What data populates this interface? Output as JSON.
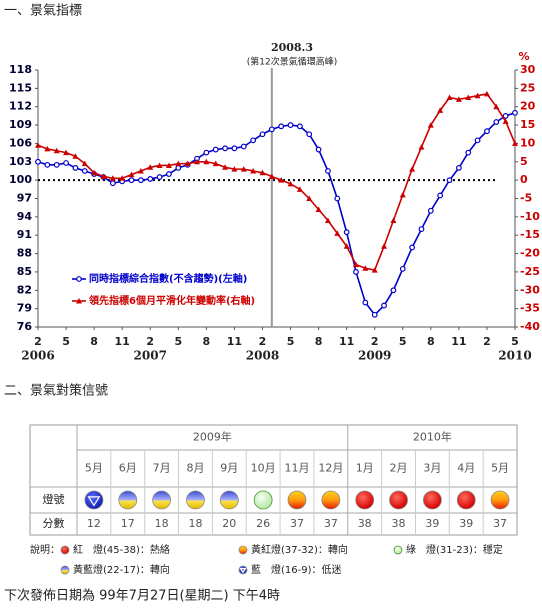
{
  "heading": "一、景氣指標",
  "chart_data": {
    "type": "line",
    "annotation": {
      "label": "2008.3",
      "note": "(第12次景氣循環高峰)"
    },
    "y2_unit": "%",
    "categories": [
      "2",
      null,
      null,
      "5",
      null,
      null,
      "8",
      null,
      null,
      "11",
      null,
      null,
      "2",
      null,
      null,
      "5",
      null,
      null,
      "8",
      null,
      null,
      "11",
      null,
      null,
      "2",
      null,
      null,
      "5",
      null,
      null,
      "8",
      null,
      null,
      "11",
      null,
      null,
      "2",
      null,
      null,
      "5",
      null,
      null,
      "8",
      null,
      null,
      "11",
      null,
      null,
      "2",
      null,
      null,
      "5"
    ],
    "year_labels": [
      "2006",
      "2007",
      "2008",
      "2009",
      "2010"
    ],
    "series": [
      {
        "name": "同時指標綜合指數(不含趨勢)(左軸)",
        "color": "#0000cc",
        "axis": "y",
        "values": [
          103,
          102.5,
          102.5,
          102.8,
          102,
          101.5,
          101,
          100.5,
          99.5,
          99.8,
          100,
          100,
          100.2,
          100.5,
          101,
          102,
          102.5,
          103.5,
          104.5,
          105,
          105.2,
          105.2,
          105.5,
          106.5,
          107.5,
          108.3,
          108.8,
          109,
          108.8,
          107.5,
          105,
          101.5,
          97,
          91.5,
          85,
          80,
          78,
          79.5,
          82,
          85.5,
          89,
          92,
          95,
          97.5,
          100,
          102,
          104.5,
          106.5,
          108,
          109.5,
          110.5,
          111
        ]
      },
      {
        "name": "領先指標6個月平滑化年變動率(右軸)",
        "color": "#cc0000",
        "axis": "y2",
        "values": [
          9.5,
          8.5,
          8,
          7.5,
          6.5,
          4.5,
          2,
          1,
          0.5,
          0.5,
          1.5,
          2.5,
          3.5,
          4,
          4,
          4.5,
          4.5,
          5,
          5,
          4.5,
          3.5,
          3,
          3,
          2.5,
          2,
          1,
          0,
          -1,
          -2.5,
          -5,
          -8,
          -11,
          -14.5,
          -18,
          -23,
          -24,
          -24.5,
          -18,
          -11,
          -4,
          3,
          9,
          15,
          19,
          22.5,
          22,
          22.5,
          23,
          23.5,
          20,
          16,
          10
        ]
      }
    ],
    "ylim": [
      76,
      118
    ],
    "yticks": [
      76,
      79,
      82,
      85,
      88,
      91,
      94,
      97,
      100,
      103,
      106,
      109,
      112,
      115,
      118
    ],
    "y2lim": [
      -40,
      30
    ],
    "y2ticks": [
      -40,
      -35,
      -30,
      -25,
      -20,
      -15,
      -10,
      -5,
      0,
      5,
      10,
      15,
      20,
      25,
      30
    ],
    "reference_y": 100,
    "legend_loc": "lower left"
  },
  "signals": {
    "title": "二、景氣對策信號",
    "row_labels": [
      "燈號",
      "分數"
    ],
    "years": [
      {
        "label": "2009年",
        "months": [
          "5月",
          "6月",
          "7月",
          "8月",
          "9月",
          "10月",
          "11月",
          "12月"
        ],
        "lights": [
          "blue",
          "yellow-blue",
          "yellow-blue",
          "yellow-blue",
          "yellow-blue",
          "green",
          "yellow-red",
          "yellow-red"
        ],
        "scores": [
          12,
          17,
          18,
          18,
          20,
          26,
          37,
          37
        ]
      },
      {
        "label": "2010年",
        "months": [
          "1月",
          "2月",
          "3月",
          "4月",
          "5月"
        ],
        "lights": [
          "red",
          "red",
          "red",
          "red",
          "yellow-red"
        ],
        "scores": [
          38,
          38,
          39,
          39,
          37
        ]
      }
    ],
    "legend": {
      "title": "說明：",
      "items": [
        {
          "light": "red",
          "label": "紅　燈(45-38)：熱絡"
        },
        {
          "light": "yellow-red",
          "label": "黃紅燈(37-32)：轉向"
        },
        {
          "light": "green",
          "label": "綠　燈(31-23)：穩定"
        },
        {
          "light": "yellow-blue",
          "label": "黃藍燈(22-17)：轉向"
        },
        {
          "light": "blue",
          "label": "藍　燈(16-9)：低迷"
        }
      ]
    }
  },
  "footer": "下次發佈日期為 99年7月27日(星期二) 下午4時"
}
